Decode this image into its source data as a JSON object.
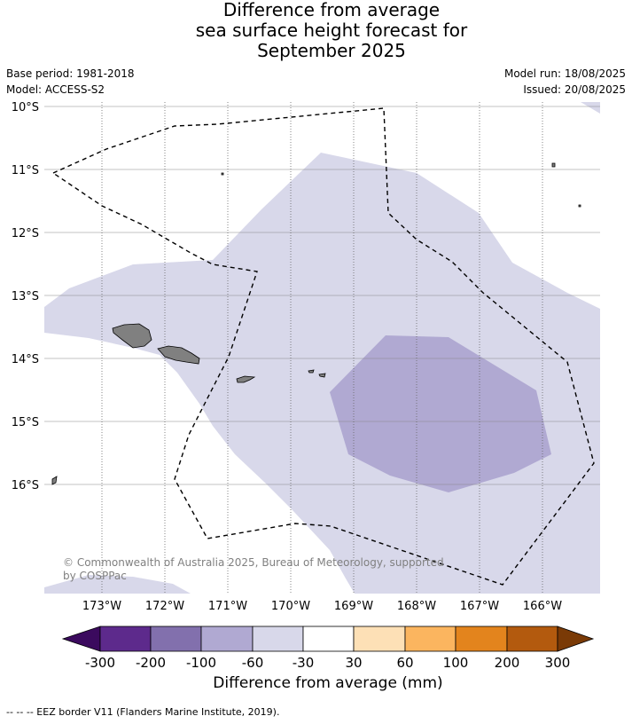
{
  "title": {
    "line1": "Difference from average",
    "line2": "sea surface height forecast for",
    "line3": "September 2025"
  },
  "meta": {
    "base_period": "Base period: 1981-2018",
    "model": "Model: ACCESS-S2",
    "model_run": "Model run: 18/08/2025",
    "issued": "Issued: 20/08/2025"
  },
  "map": {
    "lat_labels": [
      "10°S",
      "11°S",
      "12°S",
      "13°S",
      "14°S",
      "15°S",
      "16°S"
    ],
    "lon_labels": [
      "173°W",
      "172°W",
      "171°W",
      "170°W",
      "169°W",
      "168°W",
      "167°W",
      "166°W"
    ],
    "copyright_line1": "© Commonwealth of Australia 2025, Bureau of Meteorology, supported",
    "copyright_line2": "by COSPPac",
    "colors": {
      "light_band": "#d8d8ea",
      "mid_band": "#b0a9d2",
      "land": "#808080",
      "grid": "#888888"
    }
  },
  "colorbar": {
    "title": "Difference from average (mm)",
    "tick_labels": [
      "-300",
      "-200",
      "-100",
      "-60",
      "-30",
      "30",
      "60",
      "100",
      "200",
      "300"
    ],
    "colors": [
      "#3b0a5e",
      "#5d2a8c",
      "#8270ad",
      "#b0a9d2",
      "#d8d8ea",
      "#ffffff",
      "#fde0b6",
      "#fbb55f",
      "#e3841d",
      "#b35a0e",
      "#7a3a06"
    ]
  },
  "footnote": "--  --  -- EEZ border V11 (Flanders Marine Institute, 2019)."
}
